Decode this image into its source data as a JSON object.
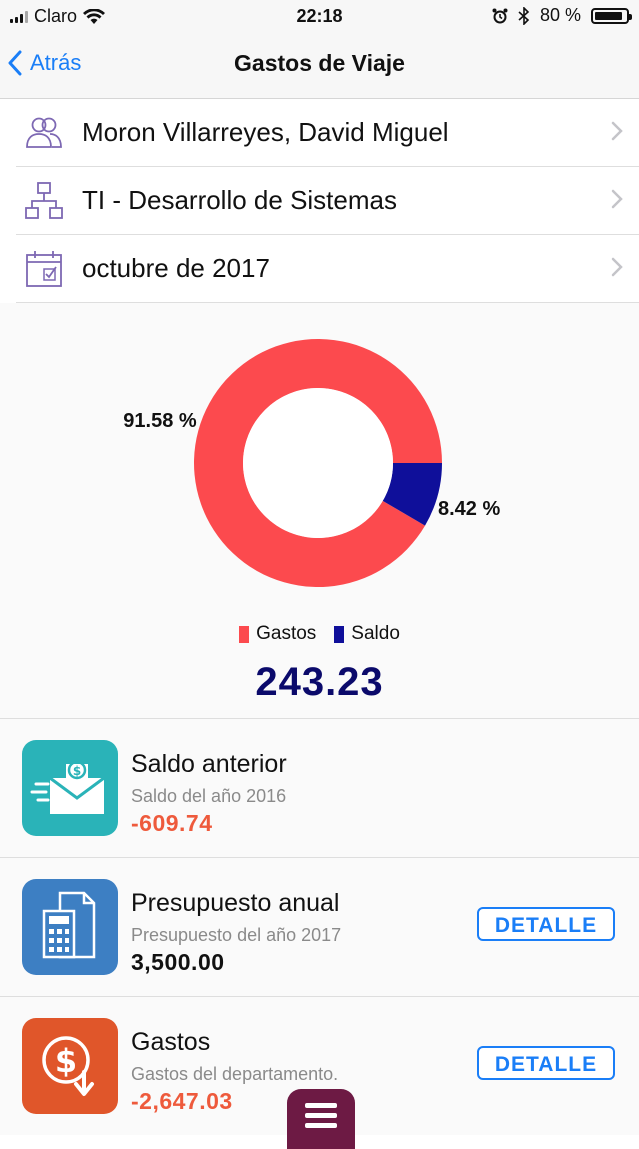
{
  "status_bar": {
    "carrier": "Claro",
    "time": "22:18",
    "battery": "80 %",
    "battery_level": 0.8
  },
  "nav": {
    "back_label": "Atrás",
    "title": "Gastos de Viaje"
  },
  "selectors": {
    "employee": "Moron Villarreyes, David Miguel",
    "department": "TI - Desarrollo de Sistemas",
    "period": "octubre de 2017"
  },
  "chart_data": {
    "type": "pie",
    "donut": true,
    "categories": [
      "Gastos",
      "Saldo"
    ],
    "values": [
      91.58,
      8.42
    ],
    "labels": [
      "91.58 %",
      "8.42 %"
    ],
    "colors": [
      "#fc4a4e",
      "#0f0f9a"
    ],
    "legend": "bottom"
  },
  "total": "243.23",
  "cards": [
    {
      "title": "Saldo anterior",
      "subtitle": "Saldo del año 2016",
      "amount": "-609.74",
      "amount_color": "#ee5a3c",
      "icon": "money-envelope-icon",
      "tile_color": "#2ab3b8"
    },
    {
      "title": "Presupuesto anual",
      "subtitle": "Presupuesto del año 2017",
      "amount": "3,500.00",
      "amount_color": "#111111",
      "icon": "calculator-document-icon",
      "tile_color": "#3d7fc3",
      "button": "DETALLE"
    },
    {
      "title": "Gastos",
      "subtitle": "Gastos del departamento.",
      "amount": "-2,647.03",
      "amount_color": "#ee5a3c",
      "icon": "dollar-down-icon",
      "tile_color": "#e0562a",
      "button": "DETALLE"
    }
  ],
  "menu_icon": "hamburger-icon"
}
